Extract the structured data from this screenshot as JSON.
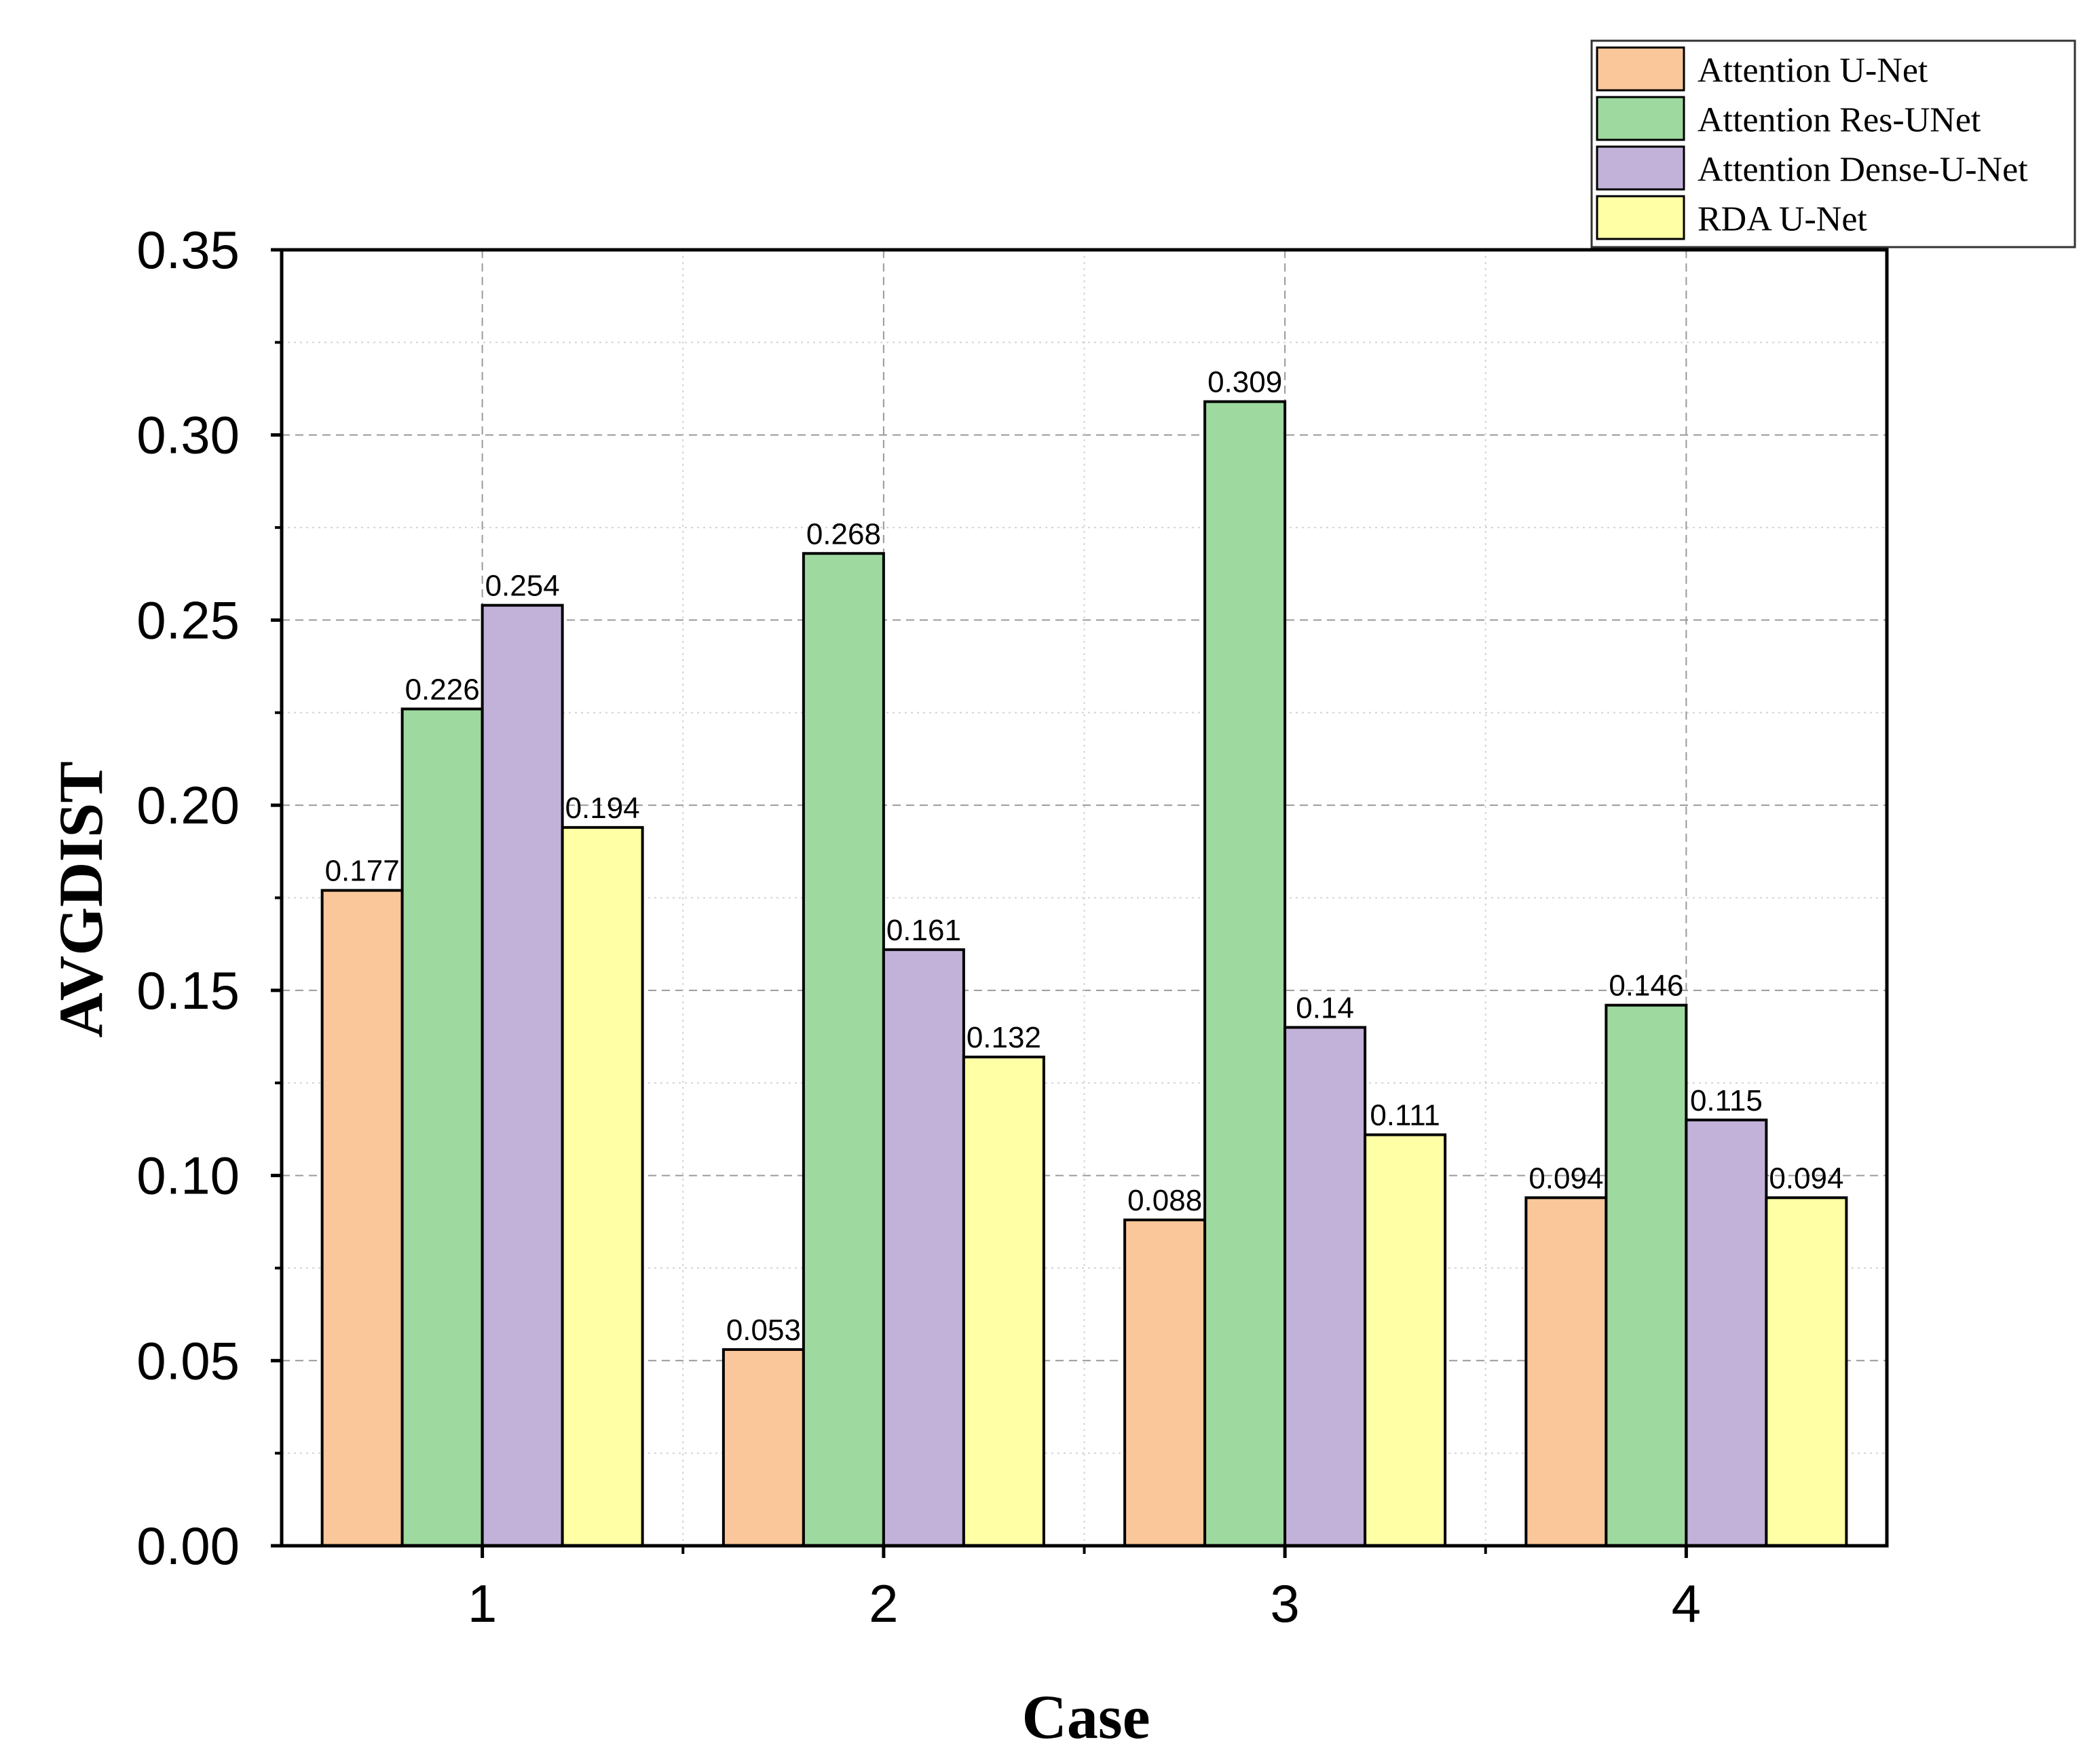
{
  "chart_data": {
    "type": "bar",
    "title": "",
    "xlabel": "Case",
    "ylabel": "AVGDIST",
    "categories": [
      "1",
      "2",
      "3",
      "4"
    ],
    "ylim": [
      0,
      0.35
    ],
    "yticks": [
      "0.00",
      "0.05",
      "0.10",
      "0.15",
      "0.20",
      "0.25",
      "0.30",
      "0.35"
    ],
    "grid": true,
    "legend_position": "top-right",
    "series": [
      {
        "name": "Attention U-Net",
        "color": "#F9C79A",
        "values": [
          0.177,
          0.053,
          0.088,
          0.094
        ],
        "labels": [
          "0.177",
          "0.053",
          "0.088",
          "0.094"
        ]
      },
      {
        "name": "Attention Res-UNet",
        "color": "#9ED9A0",
        "values": [
          0.226,
          0.268,
          0.309,
          0.146
        ],
        "labels": [
          "0.226",
          "0.268",
          "0.309",
          "0.146"
        ]
      },
      {
        "name": "Attention Dense-U-Net",
        "color": "#C2B2DA",
        "values": [
          0.254,
          0.161,
          0.14,
          0.115
        ],
        "labels": [
          "0.254",
          "0.161",
          "0.14",
          "0.115"
        ]
      },
      {
        "name": "RDA U-Net",
        "color": "#FFFFA5",
        "values": [
          0.194,
          0.132,
          0.111,
          0.094
        ],
        "labels": [
          "0.194",
          "0.132",
          "0.111",
          "0.094"
        ]
      }
    ]
  }
}
